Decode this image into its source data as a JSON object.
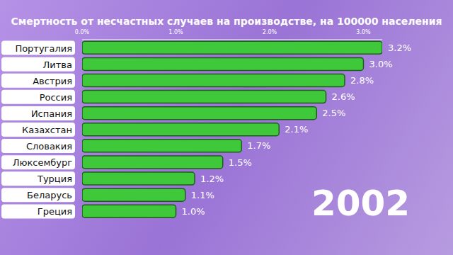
{
  "chart_data": {
    "type": "bar",
    "title": "Смертность от несчастных случаев на производстве, на 100000 населения",
    "orientation": "horizontal",
    "categories": [
      "Португалия",
      "Литва",
      "Австрия",
      "Россия",
      "Испания",
      "Казахстан",
      "Словакия",
      "Люксембург",
      "Турция",
      "Беларусь",
      "Греция"
    ],
    "values": [
      3.2,
      3.0,
      2.8,
      2.6,
      2.5,
      2.1,
      1.7,
      1.5,
      1.2,
      1.1,
      1.0
    ],
    "value_labels": [
      "3.2%",
      "3.0%",
      "2.8%",
      "2.6%",
      "2.5%",
      "2.1%",
      "1.7%",
      "1.5%",
      "1.2%",
      "1.1%",
      "1.0%"
    ],
    "color": "#3fc93a",
    "xlim": [
      0,
      3.2
    ],
    "xticks": [
      {
        "value": 0,
        "label": "0.0%"
      },
      {
        "value": 1,
        "label": "1.0%"
      },
      {
        "value": 2,
        "label": "2.0%"
      },
      {
        "value": 3,
        "label": "3.0%"
      }
    ],
    "grid": false,
    "data_labels": true,
    "annotations": [
      "2002"
    ]
  }
}
